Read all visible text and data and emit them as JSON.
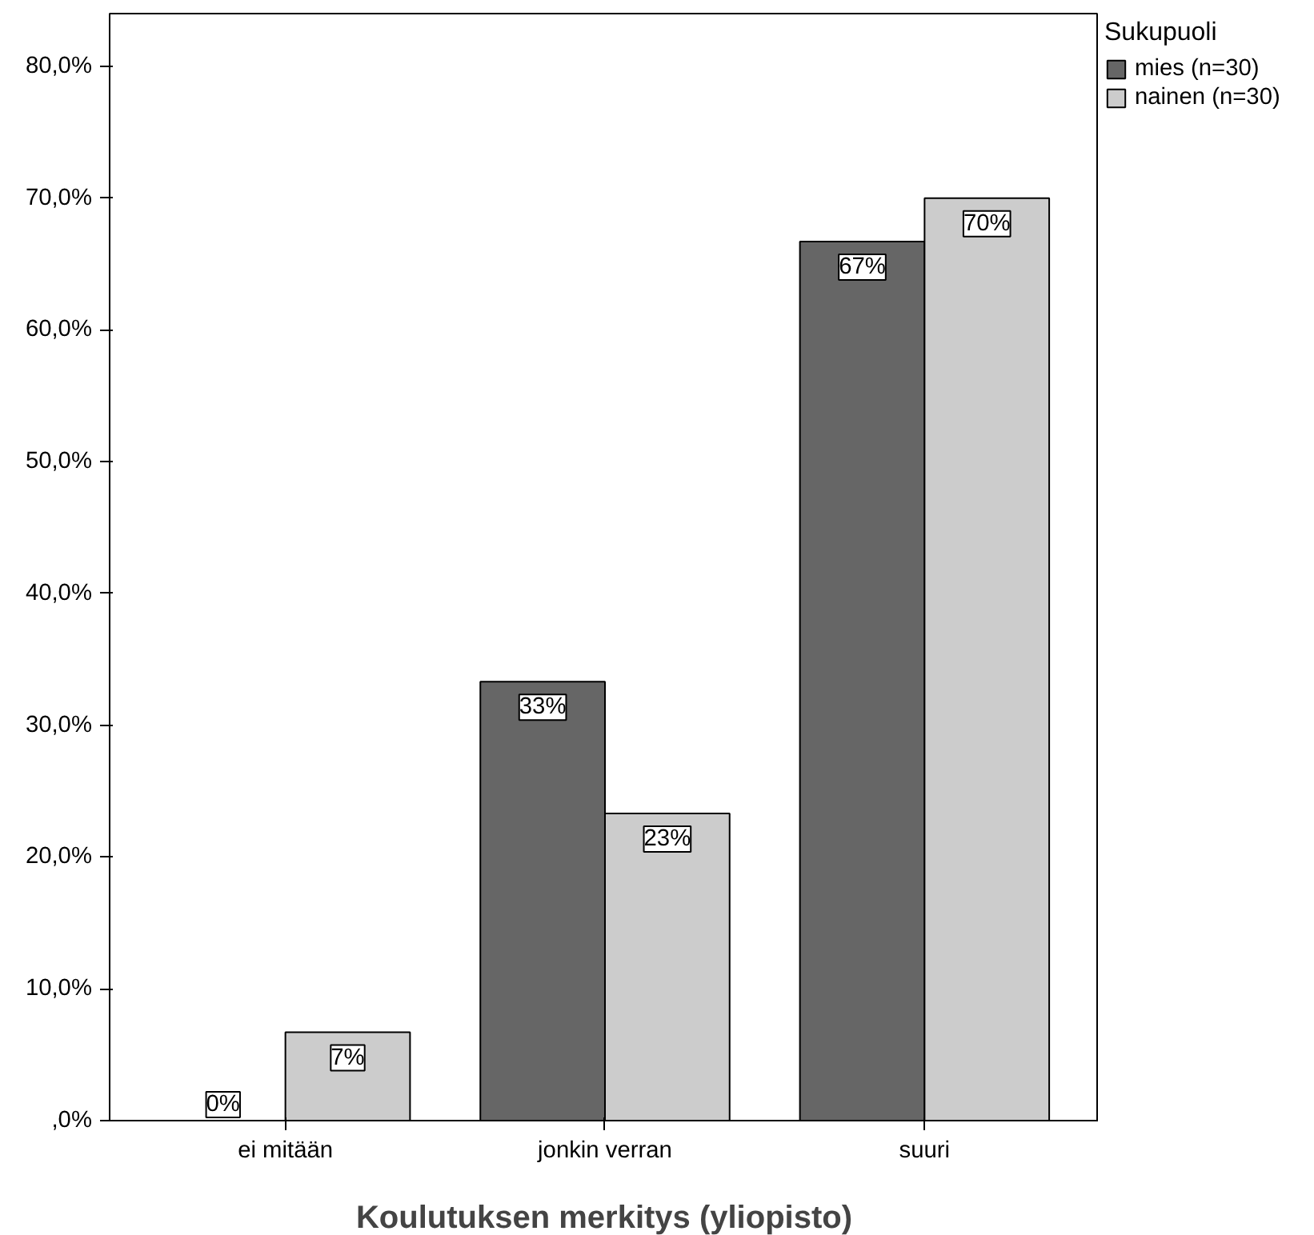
{
  "chart_data": {
    "type": "bar",
    "xlabel": "Koulutuksen merkitys (yliopisto)",
    "legend_title": "Sukupuoli",
    "categories": [
      "ei mitään",
      "jonkin verran",
      "suuri"
    ],
    "series": [
      {
        "name": "mies (n=30)",
        "color": "#666666",
        "values": [
          0,
          33.3,
          66.7
        ],
        "value_labels": [
          "0%",
          "33%",
          "67%"
        ]
      },
      {
        "name": "nainen (n=30)",
        "color": "#cccccc",
        "values": [
          6.7,
          23.3,
          70
        ],
        "value_labels": [
          "7%",
          "23%",
          "70%"
        ]
      }
    ],
    "ylim": [
      0,
      84
    ],
    "yticks": [
      {
        "value": 0,
        "label": ",0%"
      },
      {
        "value": 10,
        "label": "10,0%"
      },
      {
        "value": 20,
        "label": "20,0%"
      },
      {
        "value": 30,
        "label": "30,0%"
      },
      {
        "value": 40,
        "label": "40,0%"
      },
      {
        "value": 50,
        "label": "50,0%"
      },
      {
        "value": 60,
        "label": "60,0%"
      },
      {
        "value": 70,
        "label": "70,0%"
      },
      {
        "value": 80,
        "label": "80,0%"
      }
    ],
    "legend": "right",
    "grid": false
  }
}
